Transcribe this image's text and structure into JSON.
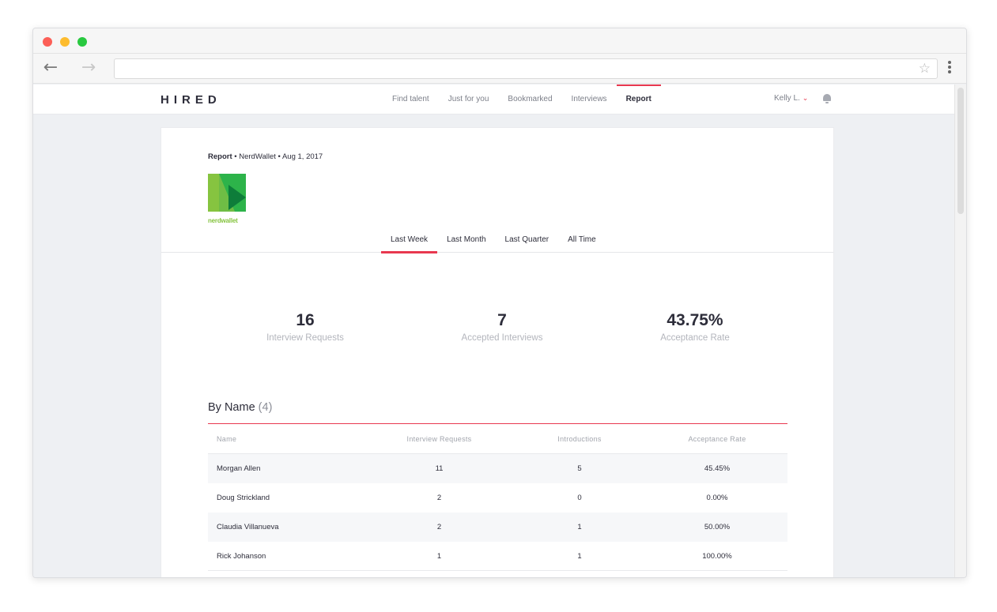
{
  "browser": {
    "url": "",
    "back_glyph": "←",
    "forward_glyph": "→",
    "bookmark_glyph": "☆"
  },
  "app": {
    "logo": "HIRED",
    "nav": [
      {
        "label": "Find talent"
      },
      {
        "label": "Just for you"
      },
      {
        "label": "Bookmarked"
      },
      {
        "label": "Interviews"
      },
      {
        "label": "Report"
      }
    ],
    "active_nav": "Report",
    "user_name": "Kelly L.",
    "user_chevron": "⌄",
    "accent_color": "#e8384f"
  },
  "report": {
    "breadcrumb": {
      "first": "Report",
      "sep1": " • ",
      "company": "NerdWallet",
      "sep2": " • ",
      "date": "Aug 1, 2017"
    },
    "brand_wordmark": "nerdwallet",
    "brand_colors": [
      "#2db34a",
      "#86c440",
      "#0e7d3a"
    ],
    "periods": [
      {
        "label": "Last Week"
      },
      {
        "label": "Last Month"
      },
      {
        "label": "Last Quarter"
      },
      {
        "label": "All Time"
      }
    ],
    "active_period": "Last Week",
    "stats": [
      {
        "value": "16",
        "label": "Interview Requests"
      },
      {
        "value": "7",
        "label": "Accepted Interviews"
      },
      {
        "value": "43.75%",
        "label": "Acceptance Rate"
      }
    ],
    "by_name": {
      "title": "By Name",
      "count": "(4)",
      "columns": [
        "Name",
        "Interview Requests",
        "Introductions",
        "Acceptance Rate"
      ],
      "rows": [
        [
          "Morgan Allen",
          "11",
          "5",
          "45.45%"
        ],
        [
          "Doug Strickland",
          "2",
          "0",
          "0.00%"
        ],
        [
          "Claudia Villanueva",
          "2",
          "1",
          "50.00%"
        ],
        [
          "Rick Johanson",
          "1",
          "1",
          "100.00%"
        ]
      ]
    }
  }
}
